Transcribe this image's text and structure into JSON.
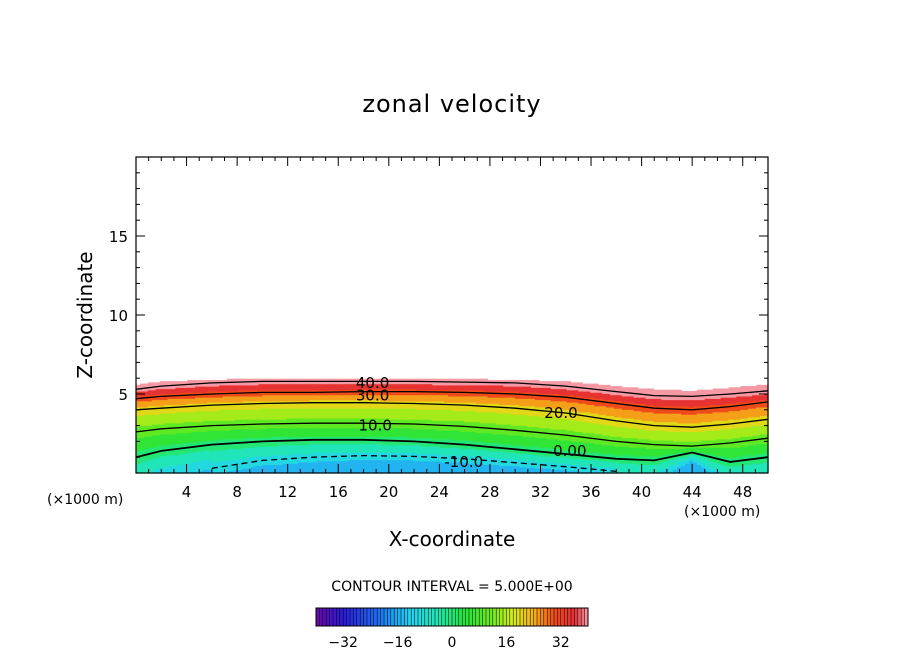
{
  "chart_data": {
    "type": "contour",
    "title": "zonal velocity",
    "xlabel": "X-coordinate",
    "ylabel": "Z-coordinate",
    "x_unit_left": "(×1000 m)",
    "x_unit_right": "(×1000 m)",
    "xlim": [
      0,
      50
    ],
    "ylim": [
      0,
      20
    ],
    "x_tick_values": [
      4,
      8,
      12,
      16,
      20,
      24,
      28,
      32,
      36,
      40,
      44,
      48
    ],
    "x_tick_labels": [
      "4",
      "8",
      "12",
      "16",
      "20",
      "24",
      "28",
      "32",
      "36",
      "40",
      "44",
      "48"
    ],
    "y_tick_values": [
      5,
      10,
      15
    ],
    "y_tick_labels": [
      "5",
      "10",
      "15"
    ],
    "contour_interval_text": "CONTOUR INTERVAL = 5.000E+00",
    "contour_interval": 5,
    "field_extent": {
      "x": [
        0,
        2,
        6,
        10,
        14,
        18,
        22,
        26,
        30,
        34,
        38,
        41,
        44,
        47,
        50
      ],
      "top_z": [
        5.6,
        5.8,
        5.9,
        6.0,
        6.0,
        6.0,
        6.0,
        5.95,
        5.9,
        5.8,
        5.5,
        5.3,
        5.2,
        5.4,
        5.6
      ]
    },
    "contour_lines": [
      {
        "level": 40,
        "label": "40.0",
        "label_x": 17.4,
        "label_z": 5.7,
        "z": [
          5.3,
          5.5,
          5.7,
          5.8,
          5.8,
          5.8,
          5.8,
          5.75,
          5.7,
          5.5,
          5.15,
          4.9,
          4.85,
          5.0,
          5.2
        ]
      },
      {
        "level": 30,
        "label": "30.0",
        "label_x": 17.4,
        "label_z": 4.9,
        "z": [
          4.7,
          4.85,
          5.0,
          5.1,
          5.1,
          5.15,
          5.15,
          5.1,
          5.0,
          4.8,
          4.4,
          4.1,
          4.0,
          4.2,
          4.5
        ]
      },
      {
        "level": 20,
        "label": "20.0",
        "label_x": 32.3,
        "label_z": 3.8,
        "z": [
          4.0,
          4.1,
          4.3,
          4.4,
          4.45,
          4.45,
          4.4,
          4.3,
          4.1,
          3.8,
          3.3,
          3.0,
          2.9,
          3.1,
          3.4
        ]
      },
      {
        "level": 10,
        "label": "10.0",
        "label_x": 17.6,
        "label_z": 3.0,
        "z": [
          2.6,
          2.8,
          3.0,
          3.1,
          3.15,
          3.15,
          3.1,
          2.95,
          2.7,
          2.4,
          2.0,
          1.8,
          1.7,
          1.9,
          2.2
        ]
      },
      {
        "level": 0,
        "label": "0.00",
        "label_x": 33.0,
        "label_z": 1.4,
        "z": [
          1.0,
          1.4,
          1.8,
          2.0,
          2.1,
          2.1,
          2.0,
          1.8,
          1.5,
          1.2,
          0.9,
          0.8,
          1.3,
          0.7,
          1.0
        ]
      },
      {
        "level": -10,
        "label": "-10.0",
        "label_x": 24.4,
        "label_z": 0.7,
        "z": [
          null,
          null,
          0.3,
          0.8,
          1.0,
          1.1,
          1.05,
          0.9,
          0.65,
          0.4,
          0.1,
          null,
          null,
          null,
          null
        ]
      }
    ],
    "colorbar": {
      "vmin": -40,
      "vmax": 40,
      "tick_values": [
        -32,
        -16,
        0,
        16,
        32
      ],
      "tick_labels": [
        "−32",
        "−16",
        "0",
        "16",
        "32"
      ],
      "stops": [
        {
          "v": -40,
          "color": "#6a0aa8"
        },
        {
          "v": -32,
          "color": "#2a1bd6"
        },
        {
          "v": -22,
          "color": "#1e6cf0"
        },
        {
          "v": -12,
          "color": "#23d3f0"
        },
        {
          "v": -4,
          "color": "#21e7b0"
        },
        {
          "v": 4,
          "color": "#27e43a"
        },
        {
          "v": 12,
          "color": "#72ea1c"
        },
        {
          "v": 18,
          "color": "#d6ec17"
        },
        {
          "v": 24,
          "color": "#f6b019"
        },
        {
          "v": 30,
          "color": "#ef4b1b"
        },
        {
          "v": 36,
          "color": "#e42e37"
        },
        {
          "v": 40,
          "color": "#f59aa5"
        }
      ]
    }
  }
}
